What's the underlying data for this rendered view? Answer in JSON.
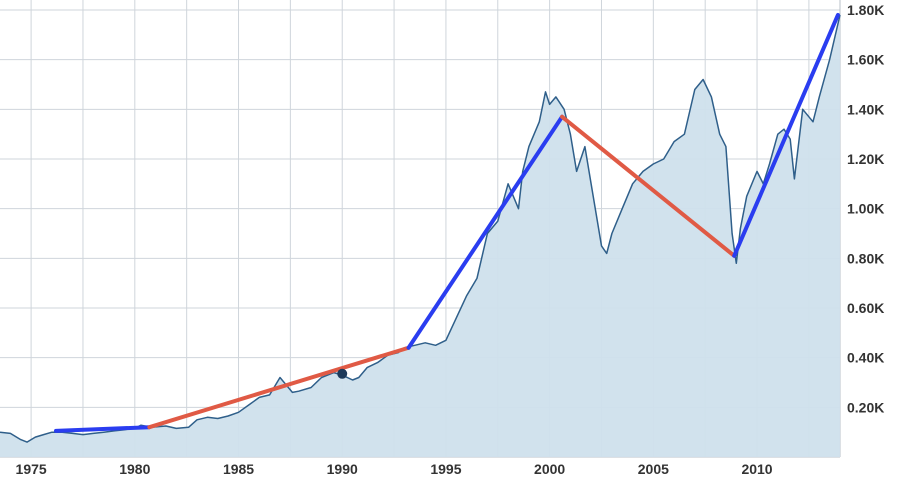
{
  "chart_data": {
    "type": "line",
    "title": "",
    "xlabel": "",
    "ylabel": "",
    "xlim": [
      1973.5,
      2014
    ],
    "ylim": [
      0,
      1800
    ],
    "grid": true,
    "x_ticks": [
      {
        "value": 1975,
        "label": "1975"
      },
      {
        "value": 1980,
        "label": "1980"
      },
      {
        "value": 1985,
        "label": "1985"
      },
      {
        "value": 1990,
        "label": "1990"
      },
      {
        "value": 1995,
        "label": "1995"
      },
      {
        "value": 2000,
        "label": "2000"
      },
      {
        "value": 2005,
        "label": "2005"
      },
      {
        "value": 2010,
        "label": "2010"
      }
    ],
    "y_ticks": [
      {
        "value": 200,
        "label": "0.20K"
      },
      {
        "value": 400,
        "label": "0.40K"
      },
      {
        "value": 600,
        "label": "0.60K"
      },
      {
        "value": 800,
        "label": "0.80K"
      },
      {
        "value": 1000,
        "label": "1.00K"
      },
      {
        "value": 1200,
        "label": "1.20K"
      },
      {
        "value": 1400,
        "label": "1.40K"
      },
      {
        "value": 1600,
        "label": "1.60K"
      },
      {
        "value": 1800,
        "label": "1.80K"
      }
    ],
    "series": [
      {
        "color": "#2f5f8a",
        "fill": "#cfe0ec",
        "x": [
          1973.5,
          1974.0,
          1974.5,
          1974.8,
          1975.2,
          1975.6,
          1976.0,
          1976.5,
          1977.0,
          1977.5,
          1978.0,
          1978.5,
          1979.0,
          1979.5,
          1980.0,
          1980.3,
          1980.8,
          1981.5,
          1982.0,
          1982.6,
          1983.0,
          1983.5,
          1984.0,
          1984.5,
          1985.0,
          1985.5,
          1986.0,
          1986.5,
          1987.0,
          1987.6,
          1987.9,
          1988.5,
          1989.0,
          1989.6,
          1990.0,
          1990.5,
          1990.8,
          1991.2,
          1991.7,
          1992.2,
          1992.7,
          1993.0,
          1993.5,
          1994.0,
          1994.5,
          1995.0,
          1995.5,
          1996.0,
          1996.5,
          1997.0,
          1997.5,
          1998.0,
          1998.5,
          1998.7,
          1999.0,
          1999.5,
          1999.8,
          2000.0,
          2000.3,
          2000.7,
          2001.0,
          2001.3,
          2001.7,
          2002.0,
          2002.5,
          2002.75,
          2003.0,
          2003.5,
          2004.0,
          2004.5,
          2005.0,
          2005.5,
          2006.0,
          2006.5,
          2007.0,
          2007.4,
          2007.8,
          2008.2,
          2008.5,
          2008.8,
          2009.0,
          2009.2,
          2009.5,
          2010.0,
          2010.3,
          2010.6,
          2011.0,
          2011.3,
          2011.6,
          2011.8,
          2012.2,
          2012.7,
          2013.0,
          2013.5,
          2014.0
        ],
        "values": [
          100,
          95,
          70,
          60,
          80,
          90,
          100,
          100,
          95,
          90,
          95,
          100,
          105,
          110,
          115,
          128,
          120,
          125,
          115,
          120,
          150,
          160,
          155,
          165,
          180,
          210,
          240,
          250,
          320,
          260,
          265,
          280,
          320,
          340,
          330,
          310,
          320,
          360,
          380,
          410,
          420,
          440,
          450,
          460,
          450,
          470,
          560,
          650,
          720,
          900,
          950,
          1100,
          1000,
          1150,
          1250,
          1350,
          1470,
          1420,
          1450,
          1400,
          1300,
          1150,
          1250,
          1100,
          850,
          820,
          900,
          1000,
          1100,
          1150,
          1180,
          1200,
          1270,
          1300,
          1480,
          1520,
          1450,
          1300,
          1250,
          900,
          780,
          920,
          1050,
          1150,
          1100,
          1180,
          1300,
          1320,
          1280,
          1120,
          1400,
          1350,
          1450,
          1600,
          1780
        ]
      }
    ],
    "trend_lines": [
      {
        "color": "#2a3df0",
        "from": [
          1976.2,
          105
        ],
        "to": [
          1980.7,
          120
        ]
      },
      {
        "color": "#e05a45",
        "from": [
          1980.7,
          120
        ],
        "to": [
          1993.2,
          440
        ]
      },
      {
        "color": "#2a3df0",
        "from": [
          1993.2,
          440
        ],
        "to": [
          2000.6,
          1370
        ]
      },
      {
        "color": "#e05a45",
        "from": [
          2000.6,
          1370
        ],
        "to": [
          2008.9,
          810
        ]
      },
      {
        "color": "#2a3df0",
        "from": [
          2008.9,
          810
        ],
        "to": [
          2013.9,
          1780
        ]
      }
    ],
    "markers": [
      {
        "x": 1990.0,
        "y": 335,
        "color": "#1e3a5a"
      }
    ]
  }
}
